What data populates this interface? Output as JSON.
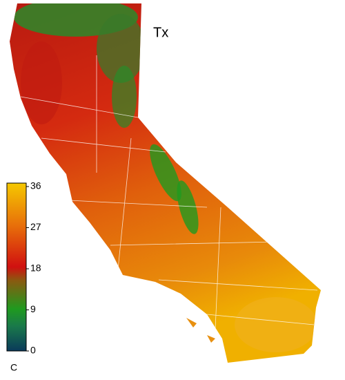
{
  "map": {
    "title": "Tx",
    "colorbar": {
      "range": [
        0,
        36
      ],
      "ticks": [
        0,
        9,
        18,
        27,
        36
      ],
      "unit": "C"
    }
  }
}
